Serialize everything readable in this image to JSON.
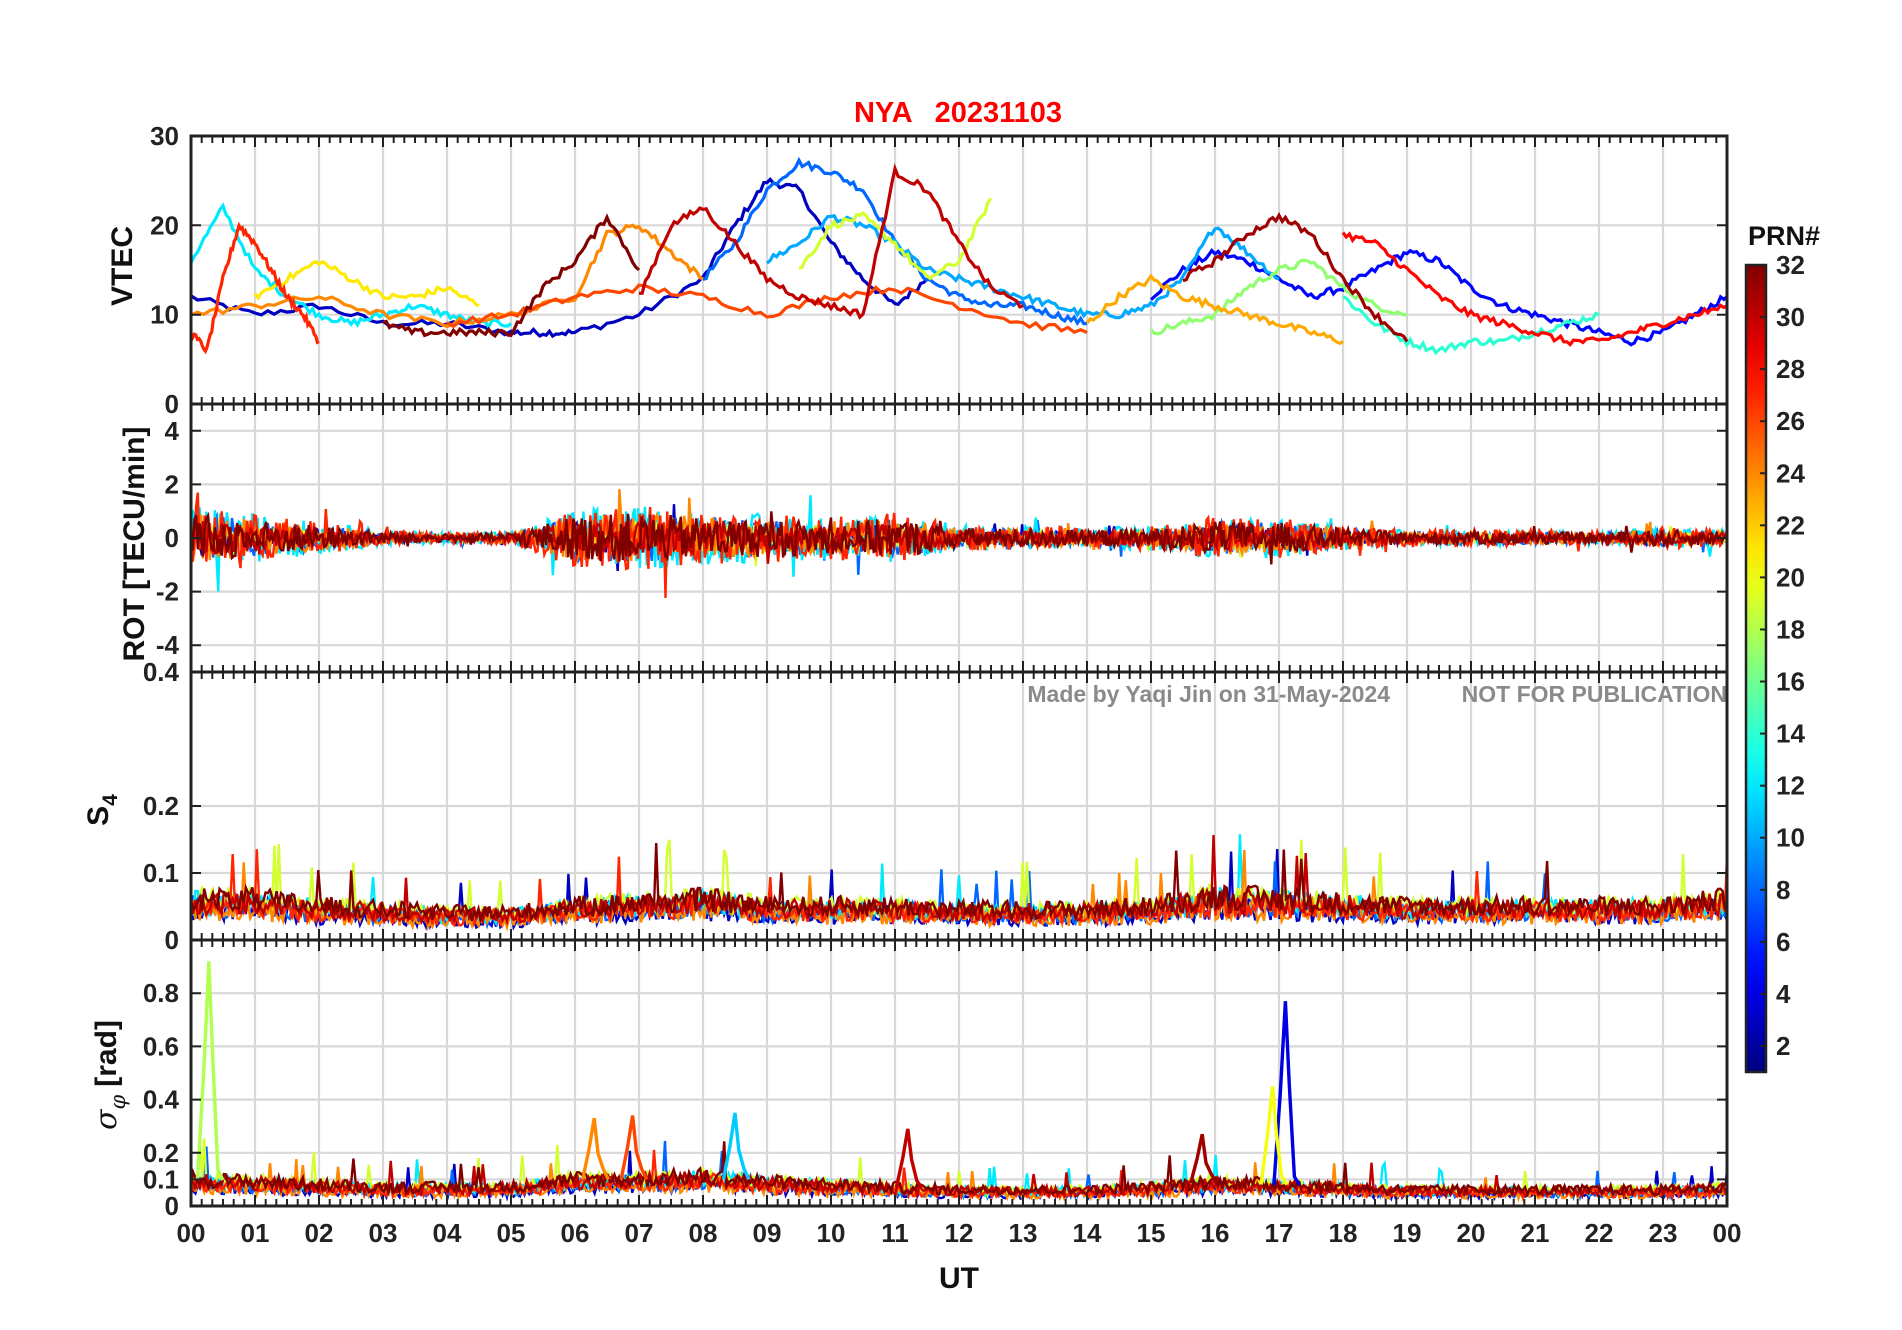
{
  "title": {
    "station": "NYA",
    "date": "20231103",
    "color": "#ff0000"
  },
  "watermark": {
    "author": "Made by Yaqi Jin on 31-May-2024",
    "notice": "NOT FOR PUBLICATION"
  },
  "colorbar": {
    "label": "PRN#",
    "min": 1,
    "max": 32,
    "ticks": [
      2,
      4,
      6,
      8,
      10,
      12,
      14,
      16,
      18,
      20,
      22,
      24,
      26,
      28,
      30,
      32
    ],
    "colormap": "jet"
  },
  "chart_data": [
    {
      "type": "line",
      "panel": "vtec",
      "ylabel": "VTEC",
      "xlabel": "",
      "xlim": [
        0,
        24
      ],
      "ylim": [
        0,
        30
      ],
      "yticks": [
        0,
        10,
        20,
        30
      ],
      "series": [
        {
          "prn": 3,
          "x": [
            0,
            1,
            2,
            3,
            4,
            5,
            5.5,
            6,
            7,
            8,
            8.5,
            9,
            9.5,
            10,
            10.5,
            11,
            11.5
          ],
          "y": [
            12,
            10,
            11,
            9,
            9,
            8,
            8,
            8,
            10,
            14,
            20,
            25,
            24,
            18,
            14,
            11,
            14
          ]
        },
        {
          "prn": 5,
          "x": [
            15,
            15.5,
            16,
            16.5,
            17,
            17.5,
            18,
            18.5,
            19,
            19.5,
            20,
            20.5,
            21,
            21.5,
            22,
            22.5,
            23,
            23.5,
            24
          ],
          "y": [
            12,
            15,
            17,
            16,
            14,
            12,
            13,
            15,
            17,
            16,
            13,
            11,
            10,
            9,
            8,
            7,
            8,
            10,
            12
          ]
        },
        {
          "prn": 8,
          "x": [
            8,
            8.5,
            9,
            9.5,
            10,
            10.5,
            11,
            11.5,
            12,
            12.5,
            13,
            13.5,
            14
          ],
          "y": [
            14,
            18,
            24,
            27,
            26,
            24,
            18,
            14,
            12,
            11,
            11,
            10,
            9
          ]
        },
        {
          "prn": 12,
          "x": [
            0,
            0.5,
            1,
            1.5,
            2,
            2.5,
            3,
            3.5,
            4,
            4.5,
            5
          ],
          "y": [
            16,
            22,
            15,
            12,
            10,
            9,
            10,
            11,
            10,
            9,
            9
          ]
        },
        {
          "prn": 10,
          "x": [
            9,
            9.5,
            10,
            10.5,
            11,
            11.5,
            12,
            12.5,
            13,
            13.5,
            14,
            14.5,
            15,
            15.5,
            16,
            16.5,
            17
          ],
          "y": [
            16,
            18,
            21,
            20,
            18,
            15,
            14,
            13,
            12,
            11,
            10,
            10,
            11,
            14,
            20,
            17,
            14
          ]
        },
        {
          "prn": 14,
          "x": [
            18,
            18.5,
            19,
            19.5,
            20,
            20.5,
            21,
            21.5,
            22
          ],
          "y": [
            12,
            9,
            7,
            6,
            7,
            7,
            8,
            9,
            10
          ]
        },
        {
          "prn": 17,
          "x": [
            15,
            15.5,
            16,
            16.5,
            17,
            17.5,
            18,
            18.5,
            19
          ],
          "y": [
            8,
            9,
            10,
            13,
            15,
            16,
            13,
            11,
            10
          ]
        },
        {
          "prn": 19,
          "x": [
            9.5,
            10,
            10.5,
            11,
            11.5,
            12,
            12.5
          ],
          "y": [
            15,
            20,
            21,
            18,
            14,
            16,
            23
          ]
        },
        {
          "prn": 21,
          "x": [
            1,
            1.5,
            2,
            2.5,
            3,
            3.5,
            4,
            4.5
          ],
          "y": [
            12,
            14,
            16,
            14,
            12,
            12,
            13,
            11
          ]
        },
        {
          "prn": 23,
          "x": [
            14,
            14.5,
            15,
            15.5,
            16,
            16.5,
            17,
            17.5,
            18
          ],
          "y": [
            9,
            12,
            14,
            12,
            11,
            10,
            9,
            8,
            7
          ]
        },
        {
          "prn": 24,
          "x": [
            0,
            1,
            2,
            3,
            4,
            5,
            6,
            6.5,
            7,
            7.5,
            8
          ],
          "y": [
            10,
            11,
            12,
            10,
            9,
            10,
            12,
            19,
            20,
            17,
            14
          ]
        },
        {
          "prn": 26,
          "x": [
            4,
            5,
            6,
            7,
            8,
            9,
            10,
            11,
            12,
            13,
            14
          ],
          "y": [
            9,
            10,
            12,
            13,
            12,
            10,
            12,
            13,
            11,
            9,
            8
          ]
        },
        {
          "prn": 27,
          "x": [
            0,
            0.25,
            0.5,
            0.75,
            1,
            1.25,
            1.5,
            1.75,
            2
          ],
          "y": [
            8,
            6,
            14,
            20,
            18,
            15,
            12,
            10,
            7
          ]
        },
        {
          "prn": 28,
          "x": [
            18,
            18.5,
            19,
            19.5,
            20,
            20.5,
            21,
            21.5,
            22,
            22.5,
            23,
            23.5,
            24
          ],
          "y": [
            19,
            18,
            15,
            12,
            10,
            9,
            8,
            7,
            7,
            8,
            9,
            10,
            11
          ]
        },
        {
          "prn": 30,
          "x": [
            7,
            7.5,
            8,
            8.5,
            9,
            9.5,
            10,
            10.5,
            11,
            11.5,
            12,
            12.5,
            13
          ],
          "y": [
            12,
            20,
            22,
            18,
            14,
            12,
            11,
            10,
            26,
            24,
            18,
            13,
            11
          ]
        },
        {
          "prn": 31,
          "x": [
            15.5,
            16,
            16.5,
            17,
            17.5,
            18,
            18.5,
            19
          ],
          "y": [
            14,
            16,
            19,
            21,
            19,
            14,
            10,
            7
          ]
        },
        {
          "prn": 32,
          "x": [
            3,
            3.5,
            4,
            4.5,
            5,
            5.5,
            6,
            6.5,
            7
          ],
          "y": [
            9,
            8,
            8,
            8,
            8,
            13,
            16,
            21,
            15
          ]
        }
      ]
    },
    {
      "type": "line",
      "panel": "rot",
      "ylabel": "ROT [TECU/min]",
      "xlabel": "",
      "xlim": [
        0,
        24
      ],
      "ylim": [
        -5,
        5
      ],
      "yticks": [
        -4,
        -2,
        0,
        2,
        4
      ],
      "noise_profile": {
        "hours": [
          0,
          1,
          2,
          3,
          4,
          5,
          6,
          7,
          8,
          9,
          10,
          11,
          12,
          13,
          14,
          15,
          16,
          17,
          18,
          19,
          20,
          21,
          22,
          23,
          24
        ],
        "amplitude": [
          2.4,
          1.8,
          1.2,
          0.6,
          0.4,
          0.5,
          2.2,
          2.4,
          2.0,
          1.8,
          1.6,
          1.9,
          1.0,
          0.9,
          0.8,
          0.9,
          1.6,
          1.5,
          0.9,
          0.6,
          0.6,
          0.6,
          0.5,
          0.8,
          0.6
        ]
      },
      "series_prns": [
        3,
        8,
        12,
        19,
        24,
        27,
        30,
        32
      ]
    },
    {
      "type": "line",
      "panel": "s4",
      "ylabel": "S4",
      "xlabel": "",
      "xlim": [
        0,
        24
      ],
      "ylim": [
        0,
        0.4
      ],
      "yticks": [
        0,
        0.1,
        0.2,
        0.4
      ],
      "baseline": {
        "hours": [
          0,
          1,
          2,
          3,
          4,
          5,
          6,
          7,
          8,
          9,
          10,
          11,
          12,
          13,
          14,
          15,
          16,
          17,
          18,
          19,
          20,
          21,
          22,
          23,
          24
        ],
        "level": [
          0.06,
          0.06,
          0.05,
          0.045,
          0.04,
          0.04,
          0.05,
          0.055,
          0.06,
          0.05,
          0.05,
          0.05,
          0.045,
          0.045,
          0.045,
          0.05,
          0.065,
          0.06,
          0.055,
          0.05,
          0.05,
          0.05,
          0.05,
          0.05,
          0.06
        ]
      },
      "series_prns": [
        3,
        8,
        12,
        19,
        24,
        27,
        30,
        32
      ]
    },
    {
      "type": "line",
      "panel": "sigma_phi",
      "ylabel": "σφ [rad]",
      "xlabel": "UT",
      "xlim": [
        0,
        24
      ],
      "ylim": [
        0,
        1
      ],
      "yticks": [
        0,
        0.1,
        0.2,
        0.4,
        0.6,
        0.8
      ],
      "xticks": [
        "00",
        "01",
        "02",
        "03",
        "04",
        "05",
        "06",
        "07",
        "08",
        "09",
        "10",
        "11",
        "12",
        "13",
        "14",
        "15",
        "16",
        "17",
        "18",
        "19",
        "20",
        "21",
        "22",
        "23",
        "00"
      ],
      "baseline": {
        "hours": [
          0,
          1,
          2,
          3,
          4,
          5,
          6,
          7,
          8,
          9,
          10,
          11,
          12,
          13,
          14,
          15,
          16,
          17,
          18,
          19,
          20,
          21,
          22,
          23,
          24
        ],
        "level": [
          0.1,
          0.09,
          0.08,
          0.07,
          0.07,
          0.07,
          0.1,
          0.1,
          0.11,
          0.09,
          0.08,
          0.07,
          0.06,
          0.06,
          0.06,
          0.07,
          0.09,
          0.08,
          0.07,
          0.06,
          0.06,
          0.06,
          0.06,
          0.06,
          0.07
        ]
      },
      "peaks": [
        {
          "prn": 18,
          "x": 0.28,
          "y": 0.92
        },
        {
          "prn": 4,
          "x": 17.1,
          "y": 0.77
        },
        {
          "prn": 20,
          "x": 16.9,
          "y": 0.45
        },
        {
          "prn": 31,
          "x": 15.8,
          "y": 0.27
        },
        {
          "prn": 24,
          "x": 6.3,
          "y": 0.33
        },
        {
          "prn": 26,
          "x": 6.9,
          "y": 0.34
        },
        {
          "prn": 11,
          "x": 8.5,
          "y": 0.35
        },
        {
          "prn": 30,
          "x": 11.2,
          "y": 0.29
        }
      ],
      "series_prns": [
        3,
        8,
        12,
        19,
        24,
        27,
        30,
        32
      ]
    }
  ]
}
